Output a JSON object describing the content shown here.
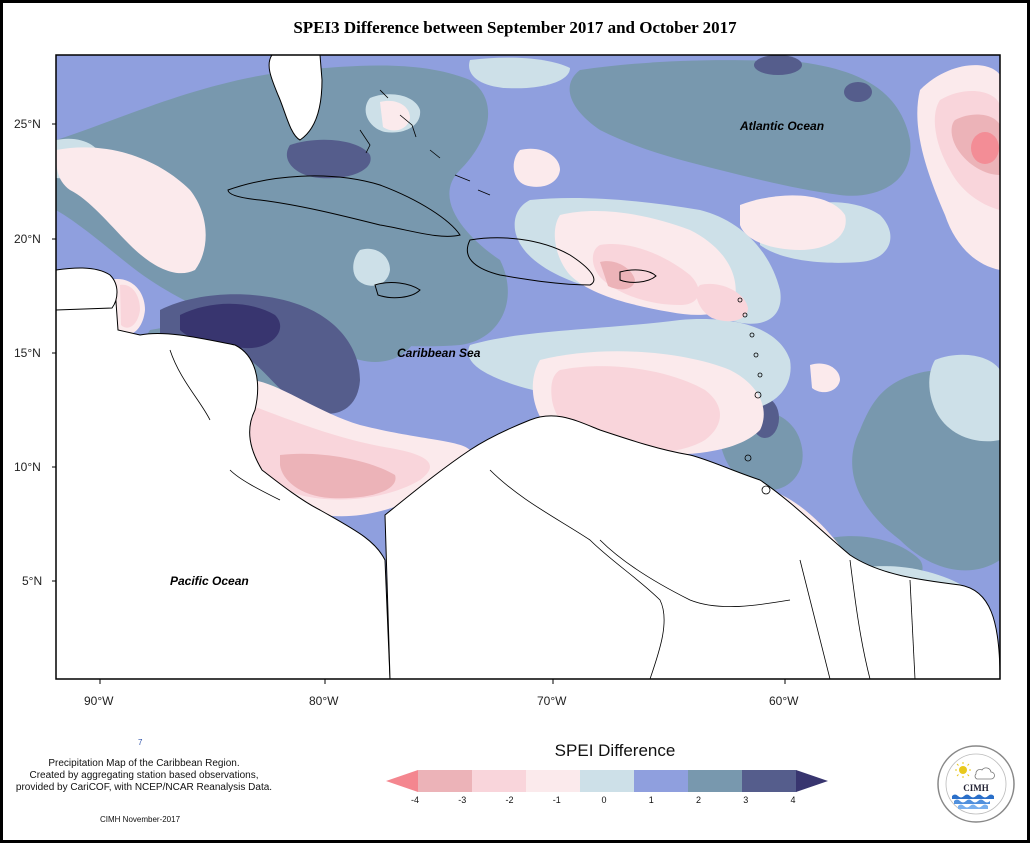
{
  "title": "SPEI3 Difference between September 2017 and October 2017",
  "axes": {
    "lat_labels": [
      "25°N",
      "20°N",
      "15°N",
      "10°N",
      "5°N"
    ],
    "lon_labels": [
      "90°W",
      "80°W",
      "70°W",
      "60°W"
    ]
  },
  "oceans": {
    "atlantic": "Atlantic Ocean",
    "caribbean": "Caribbean Sea",
    "pacific": "Pacific Ocean"
  },
  "legend": {
    "title": "SPEI Difference",
    "ticks": [
      "-4",
      "-3",
      "-2",
      "-1",
      "0",
      "1",
      "2",
      "3",
      "4"
    ],
    "colors": [
      "#f4868f",
      "#ecb3b8",
      "#f9d5db",
      "#fbeaec",
      "#cde0e8",
      "#8f9fde",
      "#7898ae",
      "#555d8c",
      "#38356f"
    ]
  },
  "credits": {
    "line1": "Precipitation Map of the Caribbean Region.",
    "line2": "Created by aggregating station based observations,",
    "line3": "provided by CariCOF, with NCEP/NCAR Reanalysis Data.",
    "date": "CIMH November-2017",
    "mark": "7"
  },
  "logo": {
    "text": "CIMH",
    "icons": [
      "sun-icon",
      "cloud-icon",
      "wave-icon"
    ]
  }
}
